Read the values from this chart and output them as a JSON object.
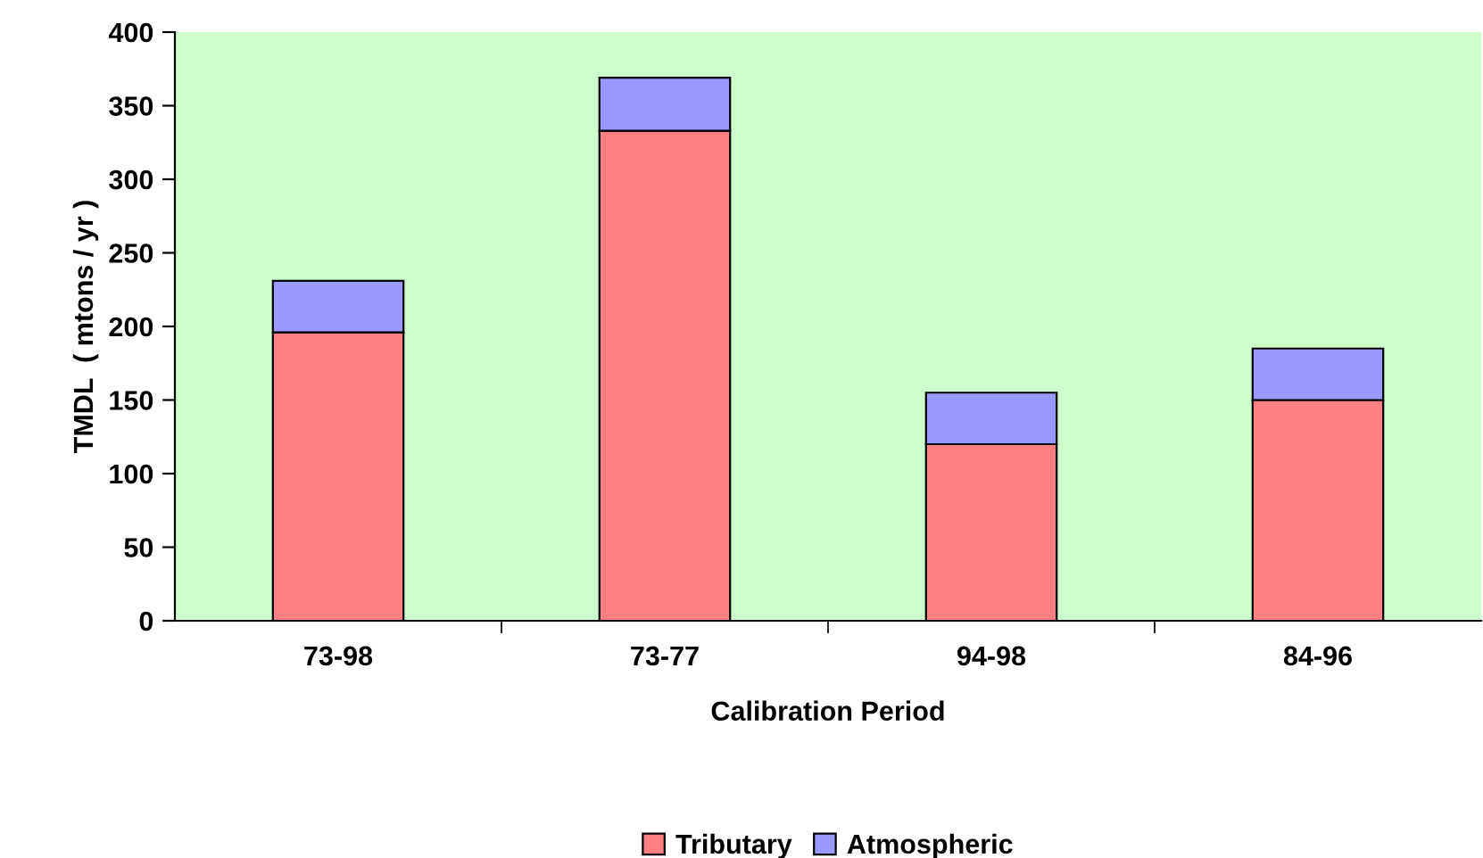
{
  "chart_data": {
    "type": "bar",
    "stacked": true,
    "xlabel": "Calibration Period",
    "ylabel": "TMDL  ( mtons / yr )",
    "categories": [
      "73-98",
      "73-77",
      "94-98",
      "84-96"
    ],
    "series": [
      {
        "name": "Tributary",
        "color": "#ff8080",
        "values": [
          196,
          333,
          120,
          150
        ]
      },
      {
        "name": "Atmospheric",
        "color": "#9999ff",
        "values": [
          35,
          36,
          35,
          35
        ]
      }
    ],
    "ylim": [
      0,
      400
    ],
    "yticks": [
      0,
      50,
      100,
      150,
      200,
      250,
      300,
      350,
      400
    ],
    "grid": false,
    "legend": "bottom"
  }
}
